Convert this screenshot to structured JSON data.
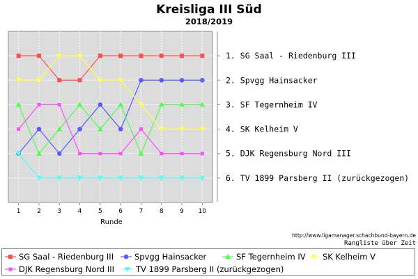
{
  "header": {
    "title": "Kreisliga III Süd",
    "subtitle": "2018/2019"
  },
  "footer": {
    "url": "http://www.ligamanager.schachbund-bayern.de",
    "caption": "Rangliste über Zeit"
  },
  "chart_data": {
    "type": "line",
    "title": "Kreisliga III Süd",
    "subtitle": "2018/2019",
    "xlabel": "Runde",
    "ylabel": "",
    "x": [
      1,
      2,
      3,
      4,
      5,
      6,
      7,
      8,
      9,
      10
    ],
    "xlim": [
      0.5,
      10.5
    ],
    "ylim": [
      0,
      7
    ],
    "y_inverted": true,
    "grid": true,
    "legend_position": "bottom",
    "rank_labels": [
      "1. SG Saal - Riedenburg III",
      "2. Spvgg Hainsacker",
      "3. SF Tegernheim IV",
      "4. SK Kelheim V",
      "5. DJK Regensburg Nord III",
      "6. TV 1899 Parsberg II (zurückgezogen)"
    ],
    "series": [
      {
        "name": "SG Saal - Riedenburg III",
        "color": "#ff4d4d",
        "marker": "square",
        "values": [
          1,
          1,
          2,
          2,
          1,
          1,
          1,
          1,
          1,
          1
        ]
      },
      {
        "name": "Spvgg Hainsacker",
        "color": "#5b5bff",
        "marker": "circle",
        "values": [
          5,
          4,
          5,
          4,
          3,
          4,
          2,
          2,
          2,
          2
        ]
      },
      {
        "name": "SF Tegernheim IV",
        "color": "#4dff4d",
        "marker": "triangle-up",
        "values": [
          3,
          5,
          4,
          3,
          4,
          3,
          5,
          3,
          3,
          3
        ]
      },
      {
        "name": "SK Kelheim V",
        "color": "#ffff4d",
        "marker": "triangle-down",
        "values": [
          2,
          2,
          1,
          1,
          2,
          2,
          3,
          4,
          4,
          4
        ]
      },
      {
        "name": "DJK Regensburg Nord III",
        "color": "#ff4dff",
        "marker": "square-small",
        "values": [
          4,
          3,
          3,
          5,
          5,
          5,
          4,
          5,
          5,
          5
        ]
      },
      {
        "name": "TV 1899 Parsberg II (zurückgezogen)",
        "color": "#4dffff",
        "marker": "triangle-down",
        "values": [
          5,
          6,
          6,
          6,
          6,
          6,
          6,
          6,
          6,
          6
        ]
      }
    ]
  }
}
